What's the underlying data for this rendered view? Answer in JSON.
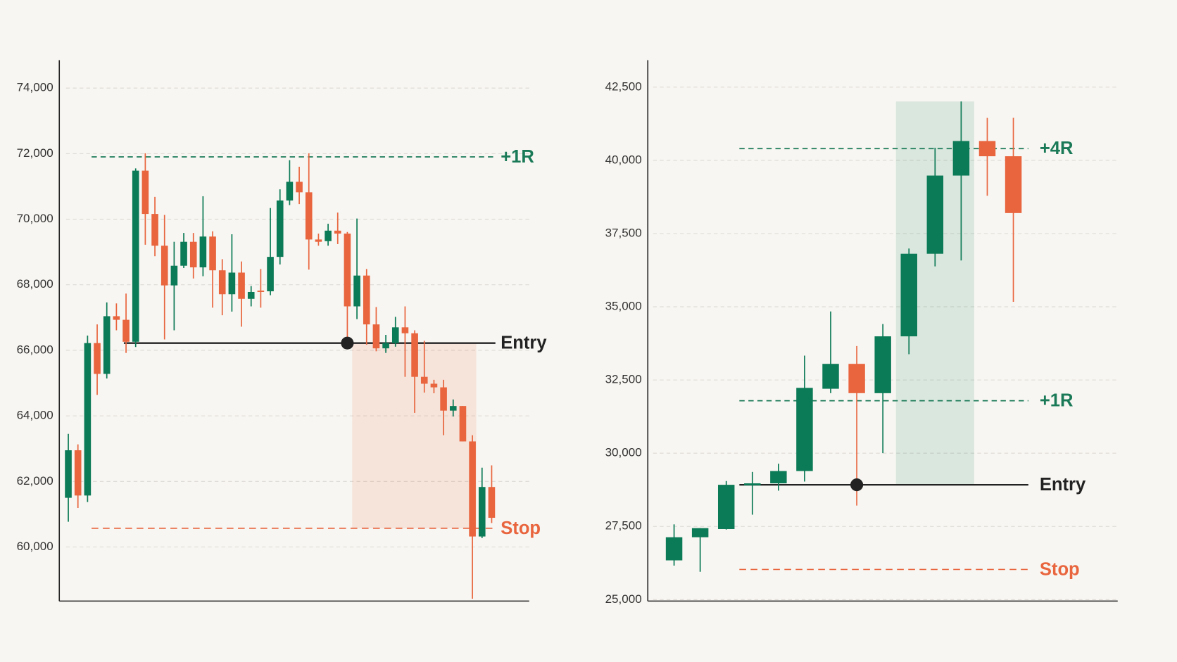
{
  "chart_data": [
    {
      "type": "candlestick",
      "open": [
        61500,
        62950,
        61570,
        66220,
        65280,
        67040,
        66930,
        66260,
        71480,
        70160,
        69190,
        67980,
        68580,
        69310,
        68530,
        69470,
        68440,
        67710,
        68370,
        67570,
        67820,
        67800,
        68850,
        70570,
        71140,
        70820,
        69380,
        69330,
        69650,
        69560,
        67340,
        68280,
        66790,
        66060,
        66220,
        66700,
        66520,
        65190,
        64980,
        64870,
        64160,
        64300,
        63220,
        60320,
        61830
      ],
      "high": [
        63450,
        63130,
        66450,
        66790,
        67460,
        67430,
        67730,
        71550,
        72010,
        70680,
        70130,
        69310,
        69580,
        69580,
        70700,
        69630,
        68780,
        69540,
        68710,
        67960,
        68480,
        70340,
        70910,
        71800,
        71600,
        72010,
        69560,
        69860,
        70200,
        69610,
        70020,
        68480,
        67320,
        66470,
        67020,
        67340,
        66610,
        66290,
        65100,
        65100,
        64500,
        64300,
        63410,
        62420,
        62490
      ],
      "low": [
        60770,
        61190,
        61370,
        64640,
        65140,
        66610,
        65920,
        66100,
        69220,
        68870,
        66330,
        66610,
        68510,
        68190,
        68260,
        67300,
        67070,
        67180,
        66720,
        67340,
        67300,
        67680,
        68620,
        70430,
        70460,
        68460,
        69190,
        69190,
        69240,
        66240,
        66950,
        66170,
        65970,
        65920,
        66110,
        65190,
        64090,
        64710,
        64690,
        63410,
        63980,
        63220,
        58420,
        60270,
        60730
      ],
      "close": [
        62950,
        61570,
        66220,
        65280,
        67040,
        66930,
        66260,
        71480,
        70160,
        69190,
        67980,
        68580,
        69310,
        68530,
        69470,
        68440,
        67710,
        68370,
        67570,
        67780,
        67780,
        68850,
        70570,
        71140,
        70820,
        69380,
        69310,
        69650,
        69560,
        67340,
        68280,
        66790,
        66060,
        66220,
        66700,
        66520,
        65190,
        64980,
        64870,
        64160,
        64300,
        63220,
        60320,
        61830,
        60890
      ],
      "up_color": "#0b7a56",
      "down_color": "#e8653e",
      "ylim": [
        58350,
        74850
      ],
      "yticks": [
        {
          "value": 60000,
          "label": "60,000"
        },
        {
          "value": 62000,
          "label": "62,000"
        },
        {
          "value": 64000,
          "label": "64,000"
        },
        {
          "value": 66000,
          "label": "66,000"
        },
        {
          "value": 68000,
          "label": "68,000"
        },
        {
          "value": 70000,
          "label": "70,000"
        },
        {
          "value": 72000,
          "label": "72,000"
        },
        {
          "value": 74000,
          "label": "74,000"
        }
      ],
      "grid": true,
      "levels": [
        {
          "label": "+1R",
          "value": 71900,
          "color": "#1a7a58",
          "style": "dashed"
        },
        {
          "label": "Entry",
          "value": 66220,
          "color": "#222222",
          "style": "solid"
        },
        {
          "label": "Stop",
          "value": 60570,
          "color": "#e8653e",
          "style": "dashed"
        }
      ]
    },
    {
      "type": "candlestick",
      "open": [
        26340,
        27130,
        27410,
        28900,
        28970,
        29390,
        32200,
        33050,
        32050,
        33990,
        36810,
        39480,
        40660,
        40140
      ],
      "high": [
        27570,
        27440,
        29050,
        29360,
        29640,
        33330,
        34840,
        33660,
        34410,
        36990,
        40430,
        42010,
        41450,
        41450
      ],
      "low": [
        26160,
        25950,
        27390,
        27900,
        28720,
        29030,
        32050,
        28210,
        30000,
        33380,
        36380,
        36580,
        38790,
        35170
      ],
      "close": [
        27130,
        27440,
        28920,
        28970,
        29390,
        32230,
        33050,
        32050,
        33990,
        36810,
        39480,
        40660,
        40140,
        38200
      ],
      "up_color": "#0b7a56",
      "down_color": "#e8653e",
      "ylim": [
        24950,
        43420
      ],
      "yticks": [
        {
          "value": 25000,
          "label": "25,000"
        },
        {
          "value": 27500,
          "label": "27,500"
        },
        {
          "value": 30000,
          "label": "30,000"
        },
        {
          "value": 32500,
          "label": "32,500"
        },
        {
          "value": 35000,
          "label": "35,000"
        },
        {
          "value": 37500,
          "label": "37,500"
        },
        {
          "value": 40000,
          "label": "40,000"
        },
        {
          "value": 42500,
          "label": "42,500"
        }
      ],
      "grid": true,
      "levels": [
        {
          "label": "+4R",
          "value": 40400,
          "color": "#1a7a58",
          "style": "dashed"
        },
        {
          "label": "+1R",
          "value": 31790,
          "color": "#1a7a58",
          "style": "dashed"
        },
        {
          "label": "Entry",
          "value": 28920,
          "color": "#222222",
          "style": "solid"
        },
        {
          "label": "Stop",
          "value": 26030,
          "color": "#e8653e",
          "style": "dashed"
        }
      ]
    }
  ]
}
